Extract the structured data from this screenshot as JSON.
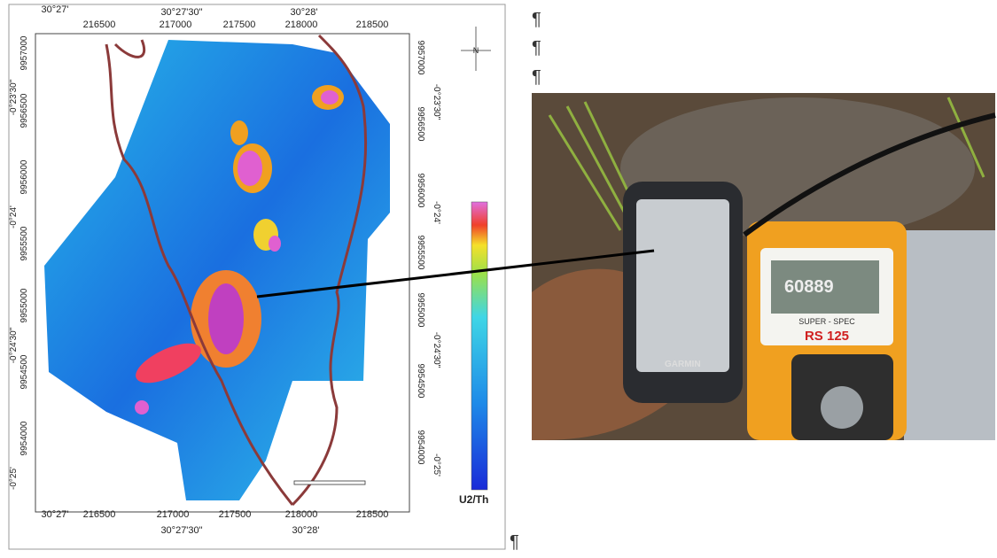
{
  "figure": {
    "map": {
      "top_degrees": [
        "30°27'",
        "30°27'30\"",
        "30°28'"
      ],
      "top_eastings": [
        "216500",
        "217000",
        "217500",
        "218000",
        "218500"
      ],
      "bottom_eastings": [
        "216500",
        "217000",
        "217500",
        "218000",
        "218500"
      ],
      "bottom_degrees": [
        "30°27'",
        "30°27'30\"",
        "30°28'"
      ],
      "left_labels": [
        "9957000",
        "-0°23'30\"",
        "9956500",
        "9956000",
        "-0°24'",
        "9955500",
        "9955000",
        "-0°24'30\"",
        "9954500",
        "9954000",
        "-0°25'"
      ],
      "right_labels": [
        "9957000",
        "-0°23'30\"",
        "9956500",
        "9956000",
        "-0°24'",
        "9955500",
        "9955000",
        "-0°24'30\"",
        "9954500",
        "9954000",
        "-0°25'"
      ],
      "north": "N",
      "legend_title": "U2/Th"
    },
    "photo": {
      "device_brand": "GARMIN",
      "instrument_maker": "SUPER - SPEC",
      "instrument_model": "RS 125",
      "display_reading": "60889"
    },
    "paragraph_marks": [
      "¶",
      "¶",
      "¶",
      "¶"
    ]
  }
}
